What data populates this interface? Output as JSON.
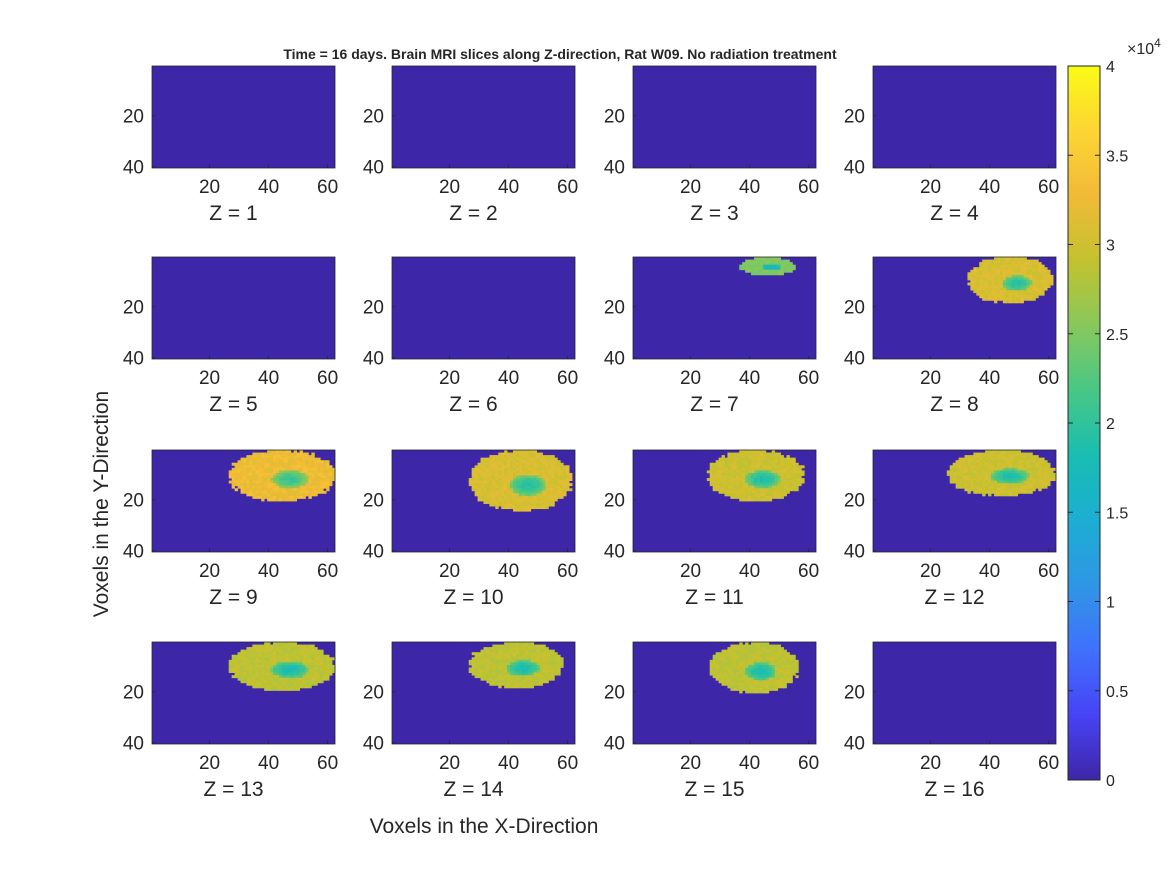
{
  "figure": {
    "title": "Time = 16 days. Brain MRI slices along Z-direction, Rat W09. No radiation treatment",
    "xlabel": "Voxels in the X-Direction",
    "ylabel": "Voxels in the Y-Direction"
  },
  "colorbar": {
    "multiplier_base": "×10",
    "multiplier_exponent": "4",
    "ticks": [
      "0",
      "0.5",
      "1",
      "1.5",
      "2",
      "2.5",
      "3",
      "3.5",
      "4"
    ],
    "range": [
      0,
      40000
    ],
    "colormap": "parula",
    "stops": [
      "#3e26a8",
      "#4743f5",
      "#3f71fd",
      "#2f96e5",
      "#1caed3",
      "#19bdb1",
      "#48c785",
      "#87c85c",
      "#c3c22e",
      "#f1ba37",
      "#fdd534",
      "#f9fb15"
    ]
  },
  "chart_data": {
    "type": "heatmap",
    "title": "Time = 16 days. Brain MRI slices along Z-direction, Rat W09. No radiation treatment",
    "xlabel": "Voxels in the X-Direction",
    "ylabel": "Voxels in the Y-Direction",
    "xlim": [
      1,
      62
    ],
    "ylim": [
      1,
      40
    ],
    "y_reversed": true,
    "x_ticks": [
      "20",
      "40",
      "60"
    ],
    "y_ticks": [
      "20",
      "40"
    ],
    "background_value": 0,
    "colorbar_range": [
      0,
      40000
    ],
    "slices": [
      {
        "z": 1,
        "label": "Z = 1",
        "x_range": null,
        "y_range": null,
        "peak_value": 0
      },
      {
        "z": 2,
        "label": "Z = 2",
        "x_range": null,
        "y_range": null,
        "peak_value": 0
      },
      {
        "z": 3,
        "label": "Z = 3",
        "x_range": null,
        "y_range": null,
        "peak_value": 0
      },
      {
        "z": 4,
        "label": "Z = 4",
        "x_range": null,
        "y_range": null,
        "peak_value": 0
      },
      {
        "z": 5,
        "label": "Z = 5",
        "x_range": null,
        "y_range": null,
        "peak_value": 0
      },
      {
        "z": 6,
        "label": "Z = 6",
        "x_range": null,
        "y_range": null,
        "peak_value": 0
      },
      {
        "z": 7,
        "label": "Z = 7",
        "x_range": [
          37,
          55
        ],
        "y_range": [
          1,
          7
        ],
        "peak_value": 26000
      },
      {
        "z": 8,
        "label": "Z = 8",
        "x_range": [
          33,
          61
        ],
        "y_range": [
          1,
          18
        ],
        "peak_value": 32000
      },
      {
        "z": 9,
        "label": "Z = 9",
        "x_range": [
          27,
          62
        ],
        "y_range": [
          1,
          20
        ],
        "peak_value": 34000
      },
      {
        "z": 10,
        "label": "Z = 10",
        "x_range": [
          27,
          61
        ],
        "y_range": [
          1,
          24
        ],
        "peak_value": 32000
      },
      {
        "z": 11,
        "label": "Z = 11",
        "x_range": [
          26,
          58
        ],
        "y_range": [
          1,
          20
        ],
        "peak_value": 31000
      },
      {
        "z": 12,
        "label": "Z = 12",
        "x_range": [
          26,
          62
        ],
        "y_range": [
          1,
          18
        ],
        "peak_value": 31000
      },
      {
        "z": 13,
        "label": "Z = 13",
        "x_range": [
          27,
          62
        ],
        "y_range": [
          1,
          19
        ],
        "peak_value": 30000
      },
      {
        "z": 14,
        "label": "Z = 14",
        "x_range": [
          27,
          58
        ],
        "y_range": [
          1,
          18
        ],
        "peak_value": 30000
      },
      {
        "z": 15,
        "label": "Z = 15",
        "x_range": [
          27,
          56
        ],
        "y_range": [
          1,
          20
        ],
        "peak_value": 30000
      },
      {
        "z": 16,
        "label": "Z = 16",
        "x_range": null,
        "y_range": null,
        "peak_value": 0
      }
    ]
  }
}
